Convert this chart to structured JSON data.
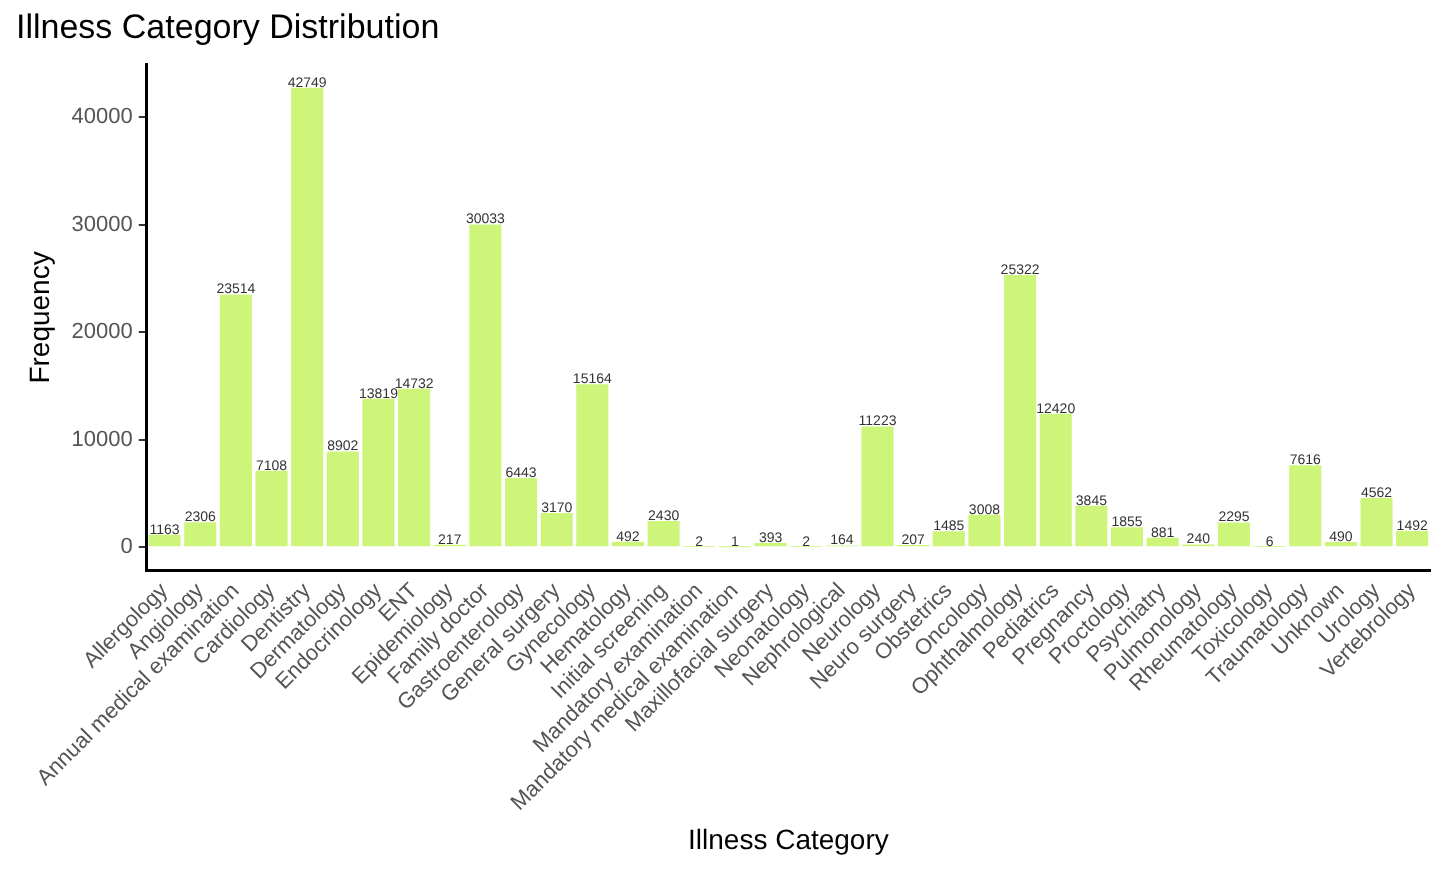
{
  "chart_data": {
    "type": "bar",
    "title": "Illness Category Distribution",
    "xlabel": "Illness Category",
    "ylabel": "Frequency",
    "categories": [
      "Allergology",
      "Angiology",
      "Annual medical examination",
      "Cardiology",
      "Dentistry",
      "Dermatology",
      "Endocrinology",
      "ENT",
      "Epidemiology",
      "Family doctor",
      "Gastroenterology",
      "General surgery",
      "Gynecology",
      "Hematology",
      "Initial screening",
      "Mandatory examination",
      "Mandatory medical examination",
      "Maxillofacial surgery",
      "Neonatology",
      "Nephrological",
      "Neurology",
      "Neuro surgery",
      "Obstetrics",
      "Oncology",
      "Ophthalmology",
      "Pediatrics",
      "Pregnancy",
      "Proctology",
      "Psychiatry",
      "Pulmonology",
      "Rheumatology",
      "Toxicology",
      "Traumatology",
      "Unknown",
      "Urology",
      "Vertebrology"
    ],
    "values": [
      1163,
      2306,
      23514,
      7108,
      42749,
      8902,
      13819,
      14732,
      217,
      30033,
      6443,
      3170,
      15164,
      492,
      2430,
      2,
      1,
      393,
      2,
      164,
      11223,
      207,
      1485,
      3008,
      25322,
      12420,
      3845,
      1855,
      881,
      240,
      2295,
      6,
      7616,
      490,
      4562,
      1492
    ],
    "color": "#ccf57a",
    "ylim": [
      -2137,
      44886
    ],
    "yticks": [
      0,
      10000,
      20000,
      30000,
      40000
    ],
    "grid": false,
    "legend": false,
    "data_labels": true
  }
}
